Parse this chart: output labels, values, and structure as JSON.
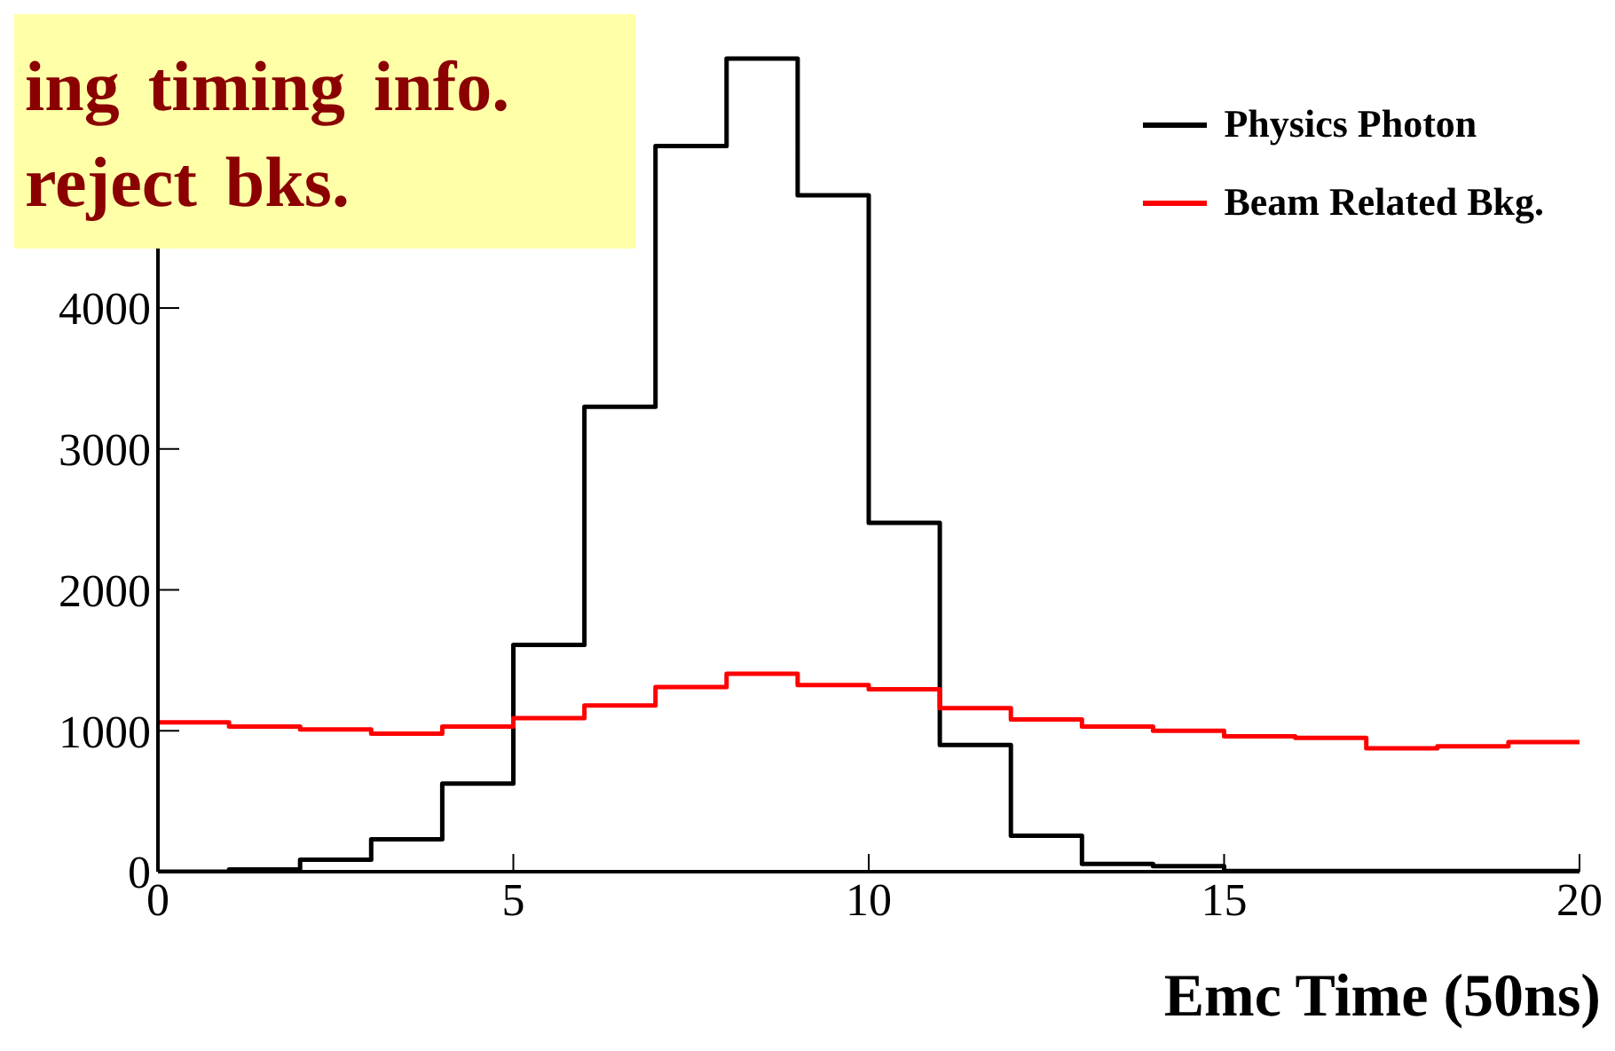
{
  "chart_data": {
    "type": "histogram",
    "xlabel": "Emc Time (50ns)",
    "annotations": [
      "ing timing info.",
      "reject bks."
    ],
    "bins": [
      0,
      1,
      2,
      3,
      4,
      5,
      6,
      7,
      8,
      9,
      10,
      11,
      12,
      13,
      14,
      15,
      16,
      17,
      18,
      19,
      20
    ],
    "series": [
      {
        "name": "Physics Photon",
        "color": "#000000",
        "values": [
          0,
          15,
          85,
          230,
          625,
          1610,
          3300,
          5150,
          5770,
          4800,
          2475,
          900,
          255,
          55,
          40,
          5,
          5,
          5,
          5,
          5
        ]
      },
      {
        "name": "Beam Related Bkg.",
        "color": "#ff0000",
        "values": [
          1060,
          1030,
          1010,
          980,
          1030,
          1090,
          1180,
          1310,
          1405,
          1325,
          1295,
          1160,
          1080,
          1030,
          1000,
          960,
          950,
          875,
          890,
          920
        ]
      }
    ],
    "xlim": [
      0,
      20
    ],
    "xticks": [
      0,
      5,
      10,
      15,
      20
    ],
    "ylim": [
      0,
      6060
    ],
    "yticks": [
      0,
      1000,
      2000,
      3000,
      4000
    ],
    "legend": "top right"
  }
}
